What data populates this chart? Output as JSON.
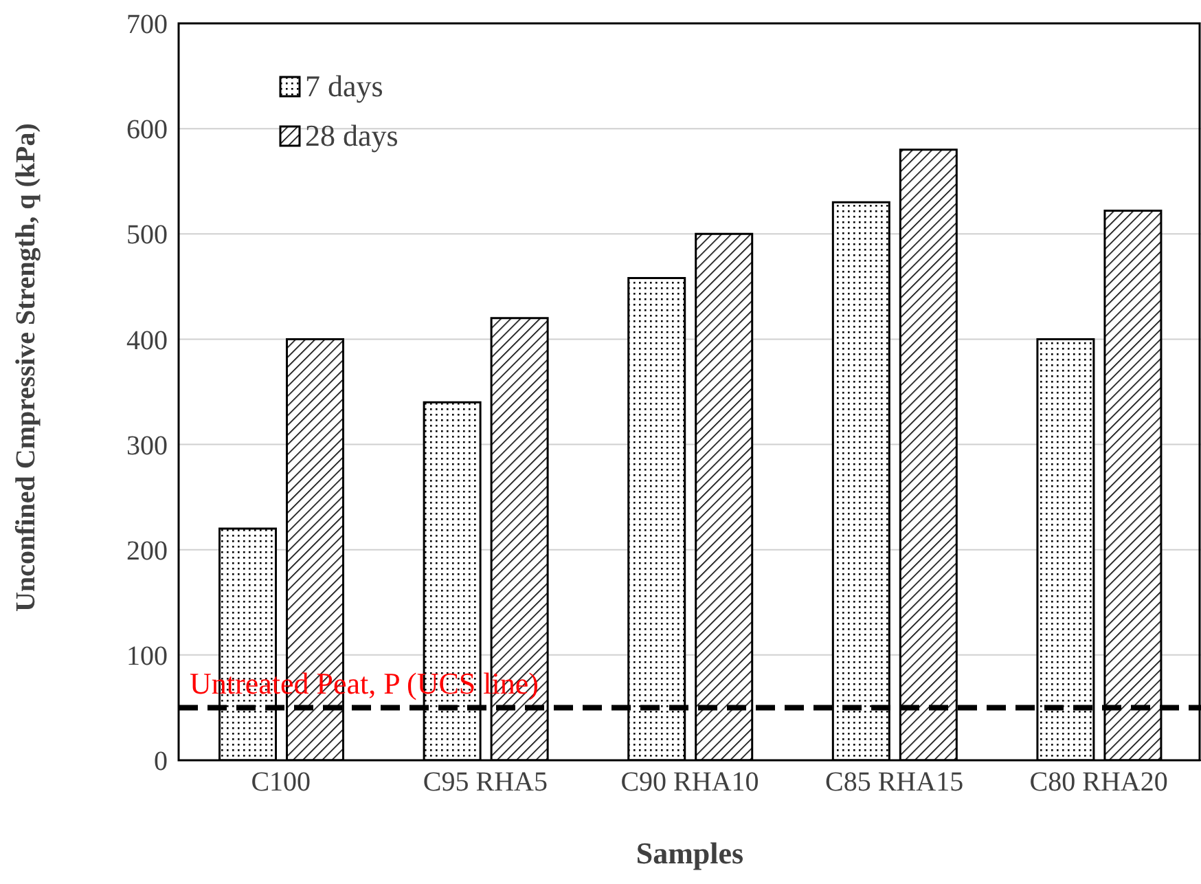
{
  "chart_data": {
    "type": "bar",
    "xlabel": "Samples",
    "ylabel": "Unconfined Cmpressive Strength, q (kPa)",
    "categories": [
      "C100",
      "C95  RHA5",
      "C90  RHA10",
      "C85  RHA15",
      "C80  RHA20"
    ],
    "series": [
      {
        "name": "7 days",
        "color": "#000000",
        "values": [
          220,
          340,
          458,
          530,
          400
        ]
      },
      {
        "name": "28 days",
        "color": "#000000",
        "values": [
          400,
          420,
          500,
          580,
          522
        ]
      }
    ],
    "ylim": [
      0,
      700
    ],
    "yticks": [
      0,
      100,
      200,
      300,
      400,
      500,
      600,
      700
    ],
    "grid": "y",
    "legend": "top left",
    "ref_lines": [
      {
        "axis": "y",
        "value": 50,
        "label": "Untreated Peat, P (UCS line)",
        "color": "#000000",
        "line_style": "dashed"
      }
    ]
  }
}
